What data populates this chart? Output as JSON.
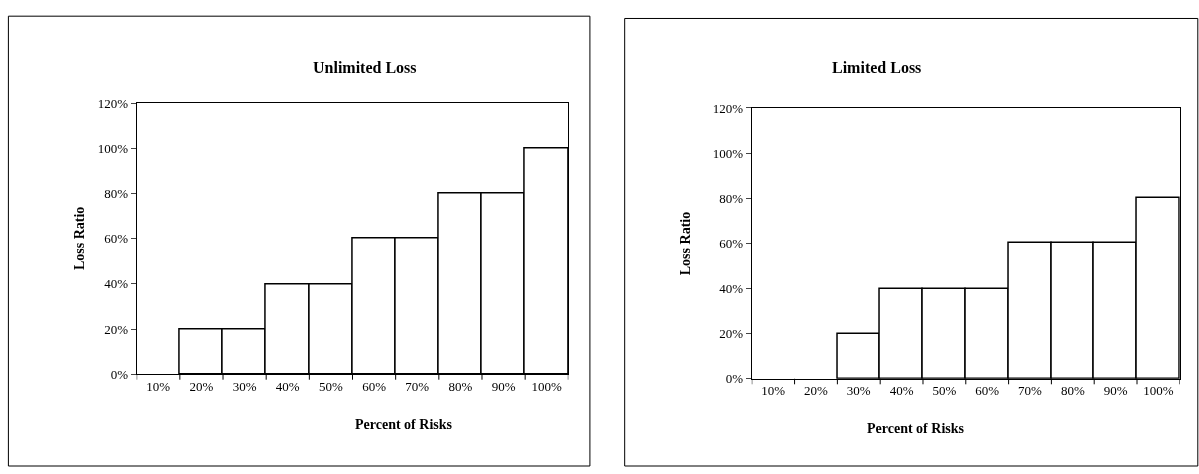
{
  "chart_data": [
    {
      "type": "bar",
      "title": "Unlimited Loss",
      "xlabel": "Percent of Risks",
      "ylabel": "Loss Ratio",
      "categories": [
        "10%",
        "20%",
        "30%",
        "40%",
        "50%",
        "60%",
        "70%",
        "80%",
        "90%",
        "100%"
      ],
      "values": [
        0,
        20,
        20,
        40,
        40,
        60,
        60,
        80,
        80,
        100
      ],
      "color": "#ffffff",
      "ylim": [
        0,
        120
      ],
      "yticks": [
        {
          "value": 0,
          "label": "0%"
        },
        {
          "value": 20,
          "label": "20%"
        },
        {
          "value": 40,
          "label": "40%"
        },
        {
          "value": 60,
          "label": "60%"
        },
        {
          "value": 80,
          "label": "80%"
        },
        {
          "value": 100,
          "label": "100%"
        },
        {
          "value": 120,
          "label": "120%"
        }
      ]
    },
    {
      "type": "bar",
      "title": "Limited Loss",
      "xlabel": "Percent of Risks",
      "ylabel": "Loss Ratio",
      "categories": [
        "10%",
        "20%",
        "30%",
        "40%",
        "50%",
        "60%",
        "70%",
        "80%",
        "90%",
        "100%"
      ],
      "values": [
        0,
        0,
        20,
        40,
        40,
        40,
        60,
        60,
        60,
        80
      ],
      "color": "#ffffff",
      "ylim": [
        0,
        120
      ],
      "yticks": [
        {
          "value": 0,
          "label": "0%"
        },
        {
          "value": 20,
          "label": "20%"
        },
        {
          "value": 40,
          "label": "40%"
        },
        {
          "value": 60,
          "label": "60%"
        },
        {
          "value": 80,
          "label": "80%"
        },
        {
          "value": 100,
          "label": "100%"
        },
        {
          "value": 120,
          "label": "120%"
        }
      ]
    }
  ]
}
